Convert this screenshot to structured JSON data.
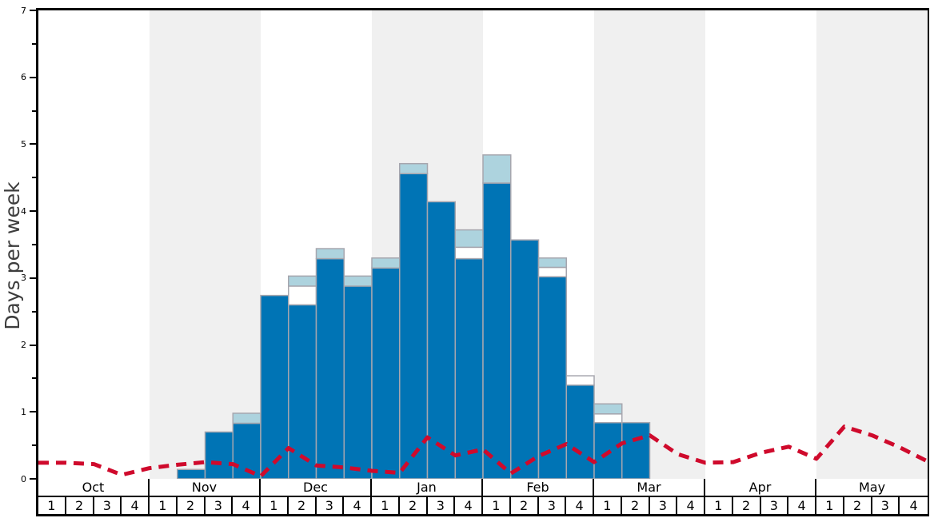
{
  "chart_data": {
    "type": "bar",
    "title": "",
    "ylabel": "Days per week",
    "ylim": [
      0,
      7
    ],
    "y_tick_labels": [
      "0",
      "1",
      "2",
      "3",
      "4",
      "5",
      "6",
      "7"
    ],
    "y_minor_tick_step": 0.5,
    "grid": "off",
    "legend": "none",
    "months": [
      "Oct",
      "Nov",
      "Dec",
      "Jan",
      "Feb",
      "Mar",
      "Apr",
      "May"
    ],
    "week_labels": [
      "1",
      "2",
      "3",
      "4"
    ],
    "shaded_month_indices": [
      1,
      3,
      5,
      7
    ],
    "bars": [
      {
        "month": "Oct",
        "week": 1,
        "dark": 0,
        "white": null,
        "light": null
      },
      {
        "month": "Oct",
        "week": 2,
        "dark": 0,
        "white": null,
        "light": null
      },
      {
        "month": "Oct",
        "week": 3,
        "dark": 0,
        "white": null,
        "light": null
      },
      {
        "month": "Oct",
        "week": 4,
        "dark": 0,
        "white": null,
        "light": null
      },
      {
        "month": "Nov",
        "week": 1,
        "dark": 0,
        "white": null,
        "light": null
      },
      {
        "month": "Nov",
        "week": 2,
        "dark": 0.14,
        "white": null,
        "light": null
      },
      {
        "month": "Nov",
        "week": 3,
        "dark": 0.7,
        "white": null,
        "light": null
      },
      {
        "month": "Nov",
        "week": 4,
        "dark": 0.83,
        "white": null,
        "light": 0.98
      },
      {
        "month": "Dec",
        "week": 1,
        "dark": 2.74,
        "white": null,
        "light": null
      },
      {
        "month": "Dec",
        "week": 2,
        "dark": 2.6,
        "white": 2.88,
        "light": 3.03
      },
      {
        "month": "Dec",
        "week": 3,
        "dark": 3.29,
        "white": null,
        "light": 3.44
      },
      {
        "month": "Dec",
        "week": 4,
        "dark": 2.88,
        "white": null,
        "light": 3.03
      },
      {
        "month": "Jan",
        "week": 1,
        "dark": 3.15,
        "white": null,
        "light": 3.3
      },
      {
        "month": "Jan",
        "week": 2,
        "dark": 4.56,
        "white": null,
        "light": 4.71
      },
      {
        "month": "Jan",
        "week": 3,
        "dark": 4.14,
        "white": null,
        "light": null
      },
      {
        "month": "Jan",
        "week": 4,
        "dark": 3.29,
        "white": 3.46,
        "light": 3.72
      },
      {
        "month": "Feb",
        "week": 1,
        "dark": 4.42,
        "white": null,
        "light": 4.84
      },
      {
        "month": "Feb",
        "week": 2,
        "dark": 3.57,
        "white": null,
        "light": null
      },
      {
        "month": "Feb",
        "week": 3,
        "dark": 3.02,
        "white": 3.16,
        "light": 3.3
      },
      {
        "month": "Feb",
        "week": 4,
        "dark": 1.4,
        "white": 1.54,
        "light": null
      },
      {
        "month": "Mar",
        "week": 1,
        "dark": 0.84,
        "white": 0.97,
        "light": 1.12
      },
      {
        "month": "Mar",
        "week": 2,
        "dark": 0.84,
        "white": null,
        "light": null
      },
      {
        "month": "Mar",
        "week": 3,
        "dark": 0,
        "white": null,
        "light": null
      },
      {
        "month": "Mar",
        "week": 4,
        "dark": 0,
        "white": null,
        "light": null
      },
      {
        "month": "Apr",
        "week": 1,
        "dark": 0,
        "white": null,
        "light": null
      },
      {
        "month": "Apr",
        "week": 2,
        "dark": 0,
        "white": null,
        "light": null
      },
      {
        "month": "Apr",
        "week": 3,
        "dark": 0,
        "white": null,
        "light": null
      },
      {
        "month": "Apr",
        "week": 4,
        "dark": 0,
        "white": null,
        "light": null
      },
      {
        "month": "May",
        "week": 1,
        "dark": 0,
        "white": null,
        "light": null
      },
      {
        "month": "May",
        "week": 2,
        "dark": 0,
        "white": null,
        "light": null
      },
      {
        "month": "May",
        "week": 3,
        "dark": 0,
        "white": null,
        "light": null
      },
      {
        "month": "May",
        "week": 4,
        "dark": 0,
        "white": null,
        "light": null
      }
    ],
    "red_line": {
      "x_mode": "week-boundaries",
      "values": [
        0.24,
        0.24,
        0.22,
        0.06,
        0.16,
        0.21,
        0.25,
        0.22,
        0.04,
        0.46,
        0.2,
        0.17,
        0.12,
        0.09,
        0.62,
        0.35,
        0.44,
        0.08,
        0.34,
        0.52,
        0.25,
        0.53,
        0.65,
        0.37,
        0.24,
        0.25,
        0.39,
        0.48,
        0.3,
        0.78,
        0.65,
        0.47,
        0.26
      ]
    },
    "colors": {
      "dark_blue": "#0074b5",
      "light_blue": "#add3de",
      "white_band": "#fffffe",
      "bar_border": "#a6a6ae",
      "month_shading": "#f0f0f0",
      "red_line": "#cf0a2c",
      "axis": "#000000"
    }
  }
}
